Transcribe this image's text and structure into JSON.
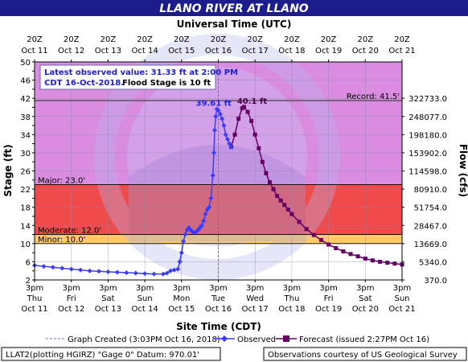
{
  "chart_data": {
    "type": "line",
    "title": "LLANO RIVER AT LLANO",
    "top_axis_title": "Universal Time (UTC)",
    "xlabel": "Site Time (CDT)",
    "ylabel": "Stage (ft)",
    "ylabel_right": "Flow (cfs)",
    "ylim": [
      2,
      50
    ],
    "xlim": [
      0,
      10
    ],
    "x_units": "days since Oct 11 3pm CDT",
    "y_ticks": [
      2,
      4,
      6,
      8,
      10,
      12,
      14,
      16,
      18,
      20,
      22,
      24,
      26,
      28,
      30,
      32,
      34,
      36,
      38,
      40,
      42,
      44,
      46,
      48,
      50
    ],
    "top_ticks": [
      {
        "line1": "20Z",
        "line2": "Oct 11"
      },
      {
        "line1": "20Z",
        "line2": "Oct 12"
      },
      {
        "line1": "20Z",
        "line2": "Oct 13"
      },
      {
        "line1": "20Z",
        "line2": "Oct 14"
      },
      {
        "line1": "20Z",
        "line2": "Oct 15"
      },
      {
        "line1": "20Z",
        "line2": "Oct 16"
      },
      {
        "line1": "20Z",
        "line2": "Oct 17"
      },
      {
        "line1": "20Z",
        "line2": "Oct 18"
      },
      {
        "line1": "20Z",
        "line2": "Oct 19"
      },
      {
        "line1": "20Z",
        "line2": "Oct 20"
      },
      {
        "line1": "20Z",
        "line2": "Oct 21"
      }
    ],
    "bottom_ticks": [
      {
        "line1": "3pm",
        "line2": "Thu",
        "line3": "Oct 11"
      },
      {
        "line1": "3pm",
        "line2": "Fri",
        "line3": "Oct 12"
      },
      {
        "line1": "3pm",
        "line2": "Sat",
        "line3": "Oct 13"
      },
      {
        "line1": "3pm",
        "line2": "Sun",
        "line3": "Oct 14"
      },
      {
        "line1": "3pm",
        "line2": "Mon",
        "line3": "Oct 15"
      },
      {
        "line1": "3pm",
        "line2": "Tue",
        "line3": "Oct 16"
      },
      {
        "line1": "3pm",
        "line2": "Wed",
        "line3": "Oct 17"
      },
      {
        "line1": "3pm",
        "line2": "Thu",
        "line3": "Oct 18"
      },
      {
        "line1": "3pm",
        "line2": "Fri",
        "line3": "Oct 19"
      },
      {
        "line1": "3pm",
        "line2": "Sat",
        "line3": "Oct 20"
      },
      {
        "line1": "3pm",
        "line2": "Sun",
        "line3": "Oct 21"
      }
    ],
    "flow_ticks": [
      {
        "stage": 42,
        "label": "322733.0"
      },
      {
        "stage": 38,
        "label": "248077.0"
      },
      {
        "stage": 34,
        "label": "198180.0"
      },
      {
        "stage": 30,
        "label": "153902.0"
      },
      {
        "stage": 26,
        "label": "114598.0"
      },
      {
        "stage": 22,
        "label": "80910.0"
      },
      {
        "stage": 18,
        "label": "51754.0"
      },
      {
        "stage": 14,
        "label": "28467.0"
      },
      {
        "stage": 10,
        "label": "13669.0"
      },
      {
        "stage": 6,
        "label": "5340.0"
      },
      {
        "stage": 2,
        "label": "370.0"
      }
    ],
    "flood_categories": [
      {
        "name": "Minor",
        "label": "Minor: 10.0'",
        "from": 10,
        "to": 12,
        "color": "#ffcc66"
      },
      {
        "name": "Moderate",
        "label": "Moderate: 12.0'",
        "from": 12,
        "to": 23,
        "color": "#f04a4a"
      },
      {
        "name": "Major",
        "label": "Major: 23.0'",
        "from": 23,
        "to": 50,
        "color": "#d98ce0"
      }
    ],
    "record": {
      "value": 41.5,
      "label": "Record: 41.5'"
    },
    "info_box": {
      "line1": "Latest observed value: 31.33 ft at 2:00 PM",
      "line2": "CDT 16-Oct-2018.",
      "line3": "Flood Stage is 10 ft"
    },
    "created_marker": {
      "x": 5.0,
      "label": "Graph Created (3:03PM Oct 16, 2018)"
    },
    "series": [
      {
        "name": "Observed",
        "color": "#3b3bff",
        "peak_label": "39.61 ft",
        "points": [
          [
            0,
            5.2
          ],
          [
            0.25,
            5.0
          ],
          [
            0.5,
            4.8
          ],
          [
            0.75,
            4.6
          ],
          [
            1,
            4.4
          ],
          [
            1.25,
            4.2
          ],
          [
            1.5,
            4.0
          ],
          [
            1.75,
            3.9
          ],
          [
            2,
            3.8
          ],
          [
            2.25,
            3.7
          ],
          [
            2.5,
            3.6
          ],
          [
            2.75,
            3.5
          ],
          [
            3,
            3.4
          ],
          [
            3.25,
            3.3
          ],
          [
            3.5,
            3.3
          ],
          [
            3.6,
            3.5
          ],
          [
            3.7,
            4.0
          ],
          [
            3.8,
            4.2
          ],
          [
            3.9,
            4.4
          ],
          [
            3.95,
            6.0
          ],
          [
            4.0,
            8.0
          ],
          [
            4.05,
            10.5
          ],
          [
            4.1,
            12.0
          ],
          [
            4.15,
            13.0
          ],
          [
            4.2,
            13.5
          ],
          [
            4.25,
            13.0
          ],
          [
            4.3,
            12.6
          ],
          [
            4.35,
            12.4
          ],
          [
            4.4,
            12.6
          ],
          [
            4.45,
            13.0
          ],
          [
            4.5,
            13.5
          ],
          [
            4.55,
            14.0
          ],
          [
            4.6,
            15.0
          ],
          [
            4.65,
            16.5
          ],
          [
            4.7,
            17.5
          ],
          [
            4.75,
            18.0
          ],
          [
            4.8,
            20.0
          ],
          [
            4.85,
            25.0
          ],
          [
            4.88,
            30.0
          ],
          [
            4.9,
            35.0
          ],
          [
            4.93,
            38.0
          ],
          [
            4.96,
            39.6
          ],
          [
            5.0,
            39.3
          ],
          [
            5.05,
            38.5
          ],
          [
            5.1,
            37.5
          ],
          [
            5.15,
            36.0
          ],
          [
            5.2,
            34.0
          ],
          [
            5.25,
            33.0
          ],
          [
            5.3,
            32.0
          ],
          [
            5.35,
            31.3
          ]
        ]
      },
      {
        "name": "Forecast (issued 2:27PM Oct 16)",
        "color": "#660066",
        "peak_label": "40.1 ft",
        "points": [
          [
            5.35,
            31.3
          ],
          [
            5.45,
            34.0
          ],
          [
            5.55,
            37.5
          ],
          [
            5.65,
            39.8
          ],
          [
            5.7,
            40.1
          ],
          [
            5.8,
            39.0
          ],
          [
            5.9,
            37.0
          ],
          [
            6.0,
            34.0
          ],
          [
            6.1,
            31.0
          ],
          [
            6.2,
            28.0
          ],
          [
            6.3,
            25.5
          ],
          [
            6.4,
            23.5
          ],
          [
            6.5,
            22.0
          ],
          [
            6.6,
            20.5
          ],
          [
            6.7,
            19.5
          ],
          [
            6.8,
            18.5
          ],
          [
            6.9,
            17.5
          ],
          [
            7.0,
            16.5
          ],
          [
            7.2,
            14.8
          ],
          [
            7.4,
            13.2
          ],
          [
            7.6,
            11.9
          ],
          [
            7.8,
            10.8
          ],
          [
            8.0,
            9.8
          ],
          [
            8.2,
            9.0
          ],
          [
            8.4,
            8.3
          ],
          [
            8.6,
            7.7
          ],
          [
            8.8,
            7.2
          ],
          [
            9.0,
            6.7
          ],
          [
            9.2,
            6.3
          ],
          [
            9.4,
            6.0
          ],
          [
            9.6,
            5.8
          ],
          [
            9.8,
            5.6
          ],
          [
            10.0,
            5.4
          ]
        ]
      }
    ],
    "grid": true
  },
  "footer": {
    "left": "LLAT2(plotting HGIRZ) \"Gage 0\" Datum: 970.01'",
    "right": "Observations courtesy of US Geological Survey"
  }
}
